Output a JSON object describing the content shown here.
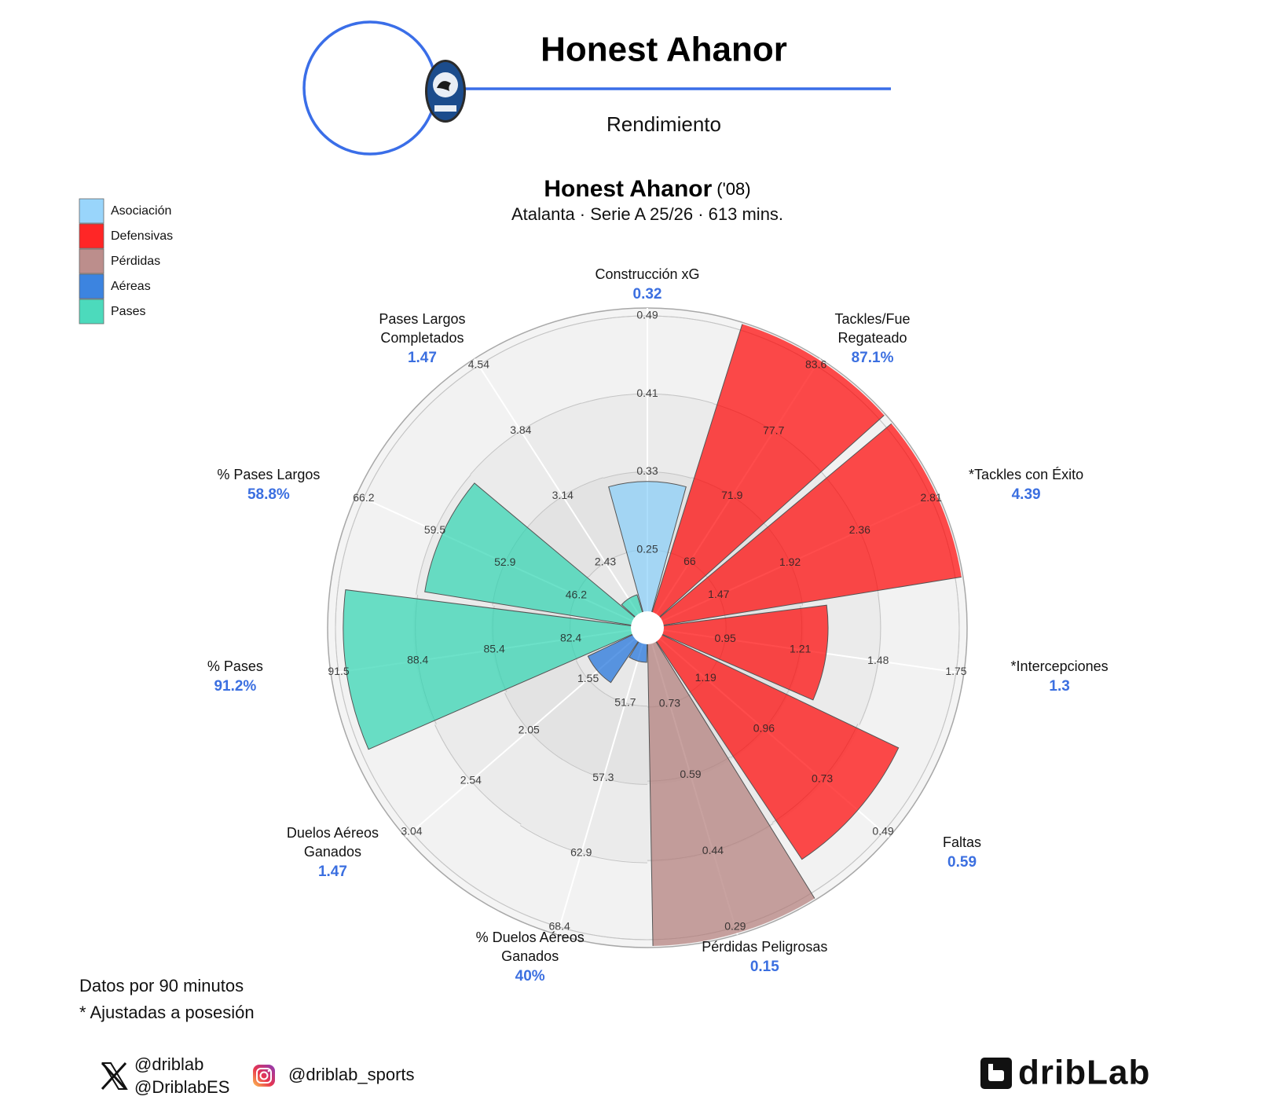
{
  "header": {
    "title": "Honest Ahanor",
    "subtitle": "Rendimiento"
  },
  "chart_data": {
    "type": "pizza",
    "title": "Honest Ahanor",
    "title_suffix": "('08)",
    "subtitle": "Atalanta · Serie A 25/26 · 613 mins.",
    "groups": [
      {
        "name": "Asociación",
        "color": "#87cefa"
      },
      {
        "name": "Defensivas",
        "color": "#ff0000"
      },
      {
        "name": "Pérdidas",
        "color": "#b07a78"
      },
      {
        "name": "Aéreas",
        "color": "#1a6fdb"
      },
      {
        "name": "Pases",
        "color": "#2dd4b0"
      }
    ],
    "categories": [
      "Construcción xG",
      "Tackles/Fue Regateado",
      "*Tackles con Éxito",
      "*Intercepciones",
      "Faltas",
      "Pérdidas Peligrosas",
      "% Duelos Aéreos Ganados",
      "Duelos Aéreos Ganados",
      "% Pases",
      "% Pases Largos",
      "Pases Largos Completados"
    ],
    "category_groups": [
      0,
      1,
      1,
      1,
      1,
      2,
      3,
      3,
      4,
      4,
      4
    ],
    "values": [
      0.32,
      87.1,
      4.39,
      1.3,
      0.59,
      0.15,
      40,
      1.47,
      91.2,
      58.8,
      1.47
    ],
    "value_labels": [
      "0.32",
      "87.1%",
      "4.39",
      "1.3",
      "0.59",
      "0.15",
      "40%",
      "1.47",
      "91.2%",
      "58.8%",
      "1.47"
    ],
    "axes": [
      {
        "ylim": [
          0.17,
          0.49
        ],
        "yticks": [
          0.25,
          0.33,
          0.41,
          0.49
        ]
      },
      {
        "ylim": [
          60.1,
          83.6
        ],
        "yticks": [
          66,
          71.9,
          77.7,
          83.6
        ]
      },
      {
        "ylim": [
          1.02,
          2.81
        ],
        "yticks": [
          1.47,
          1.92,
          2.36,
          2.81
        ]
      },
      {
        "ylim": [
          0.68,
          1.75
        ],
        "yticks": [
          0.95,
          1.21,
          1.48,
          1.75
        ]
      },
      {
        "ylim": [
          1.42,
          0.49
        ],
        "yticks": [
          1.19,
          0.96,
          0.73,
          0.49
        ]
      },
      {
        "ylim": [
          0.88,
          0.29
        ],
        "yticks": [
          0.73,
          0.59,
          0.44,
          0.29
        ]
      },
      {
        "ylim": [
          46.1,
          68.4
        ],
        "yticks": [
          51.7,
          57.3,
          62.9,
          68.4
        ]
      },
      {
        "ylim": [
          1.05,
          3.04
        ],
        "yticks": [
          1.55,
          2.05,
          2.54,
          3.04
        ]
      },
      {
        "ylim": [
          79.4,
          91.5
        ],
        "yticks": [
          82.4,
          85.4,
          88.4,
          91.5
        ]
      },
      {
        "ylim": [
          39.5,
          66.2
        ],
        "yticks": [
          46.2,
          52.9,
          59.5,
          66.2
        ]
      },
      {
        "ylim": [
          1.73,
          4.54
        ],
        "yticks": [
          2.43,
          3.14,
          3.84,
          4.54
        ]
      }
    ]
  },
  "notes": [
    "Datos por 90 minutos",
    "* Ajustadas a posesión"
  ],
  "social": {
    "x": [
      "@driblab",
      "@DriblabES"
    ],
    "instagram": "@driblab_sports"
  },
  "brand": "dribLab"
}
